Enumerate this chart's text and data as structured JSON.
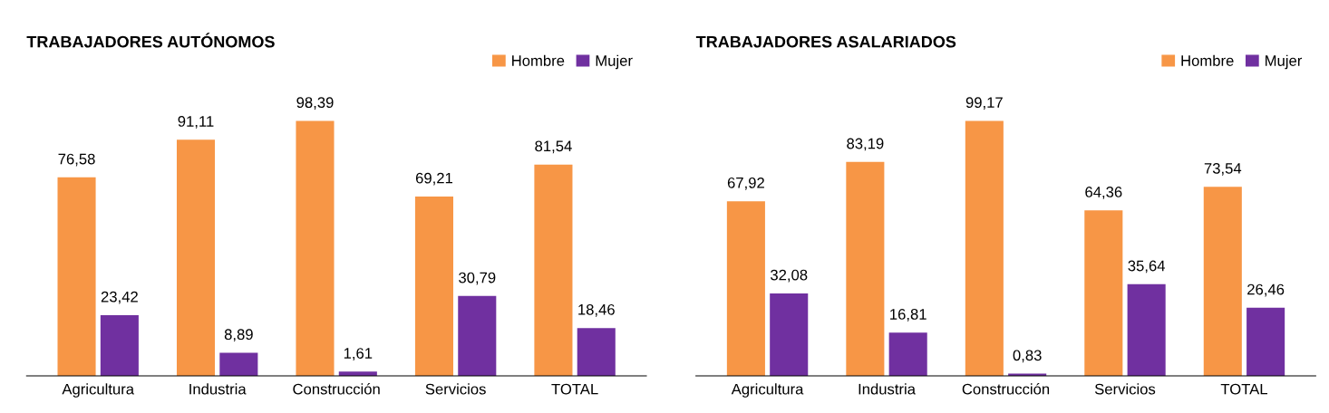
{
  "chart_data": [
    {
      "type": "bar",
      "title": "TRABAJADORES AUTÓNOMOS",
      "categories": [
        "Agricultura",
        "Industria",
        "Construcción",
        "Servicios",
        "TOTAL"
      ],
      "legend": "top right",
      "grid": false,
      "series": [
        {
          "name": "Hombre",
          "color": "#f79646",
          "values": [
            76.58,
            91.11,
            98.39,
            69.21,
            81.54
          ],
          "value_labels": [
            "76,58",
            "91,11",
            "98,39",
            "69,21",
            "81,54"
          ]
        },
        {
          "name": "Mujer",
          "color": "#7030a0",
          "values": [
            23.42,
            8.89,
            1.61,
            30.79,
            18.46
          ],
          "value_labels": [
            "23,42",
            "8,89",
            "1,61",
            "30,79",
            "18,46"
          ]
        }
      ]
    },
    {
      "type": "bar",
      "title": "TRABAJADORES ASALARIADOS",
      "categories": [
        "Agricultura",
        "Industria",
        "Construcción",
        "Servicios",
        "TOTAL"
      ],
      "legend": "top right",
      "grid": false,
      "series": [
        {
          "name": "Hombre",
          "color": "#f79646",
          "values": [
            67.92,
            83.19,
            99.17,
            64.36,
            73.54
          ],
          "value_labels": [
            "67,92",
            "83,19",
            "99,17",
            "64,36",
            "73,54"
          ]
        },
        {
          "name": "Mujer",
          "color": "#7030a0",
          "values": [
            32.08,
            16.81,
            0.83,
            35.64,
            26.46
          ],
          "value_labels": [
            "32,08",
            "16,81",
            "0,83",
            "35,64",
            "26,46"
          ]
        }
      ]
    }
  ]
}
